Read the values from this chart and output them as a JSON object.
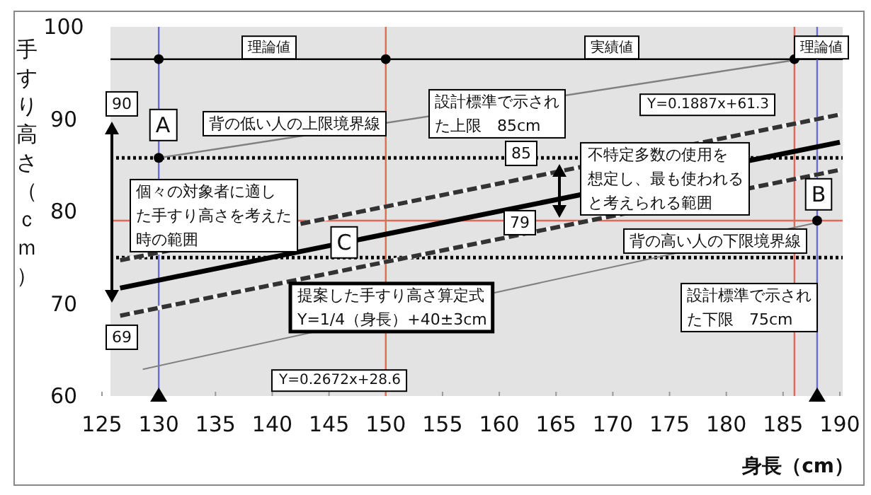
{
  "chart_data": {
    "type": "line",
    "xlabel": "身長（cm）",
    "ylabel": "手すり高さ（ｃｍ）",
    "xlim": [
      125,
      190
    ],
    "xticks": [
      125,
      130,
      135,
      140,
      145,
      150,
      155,
      160,
      165,
      170,
      175,
      180,
      185,
      190
    ],
    "ylim": [
      60,
      100
    ],
    "yticks": [
      60,
      70,
      80,
      90,
      100
    ],
    "grid": false,
    "series": [
      {
        "color": "#000000",
        "line_style": "solid",
        "marker": "none",
        "x": [
          126.6,
          190
        ],
        "values": [
          71.7,
          87.5
        ]
      },
      {
        "color": "#333333",
        "line_style": "dashed",
        "marker": "none",
        "x": [
          126.6,
          190
        ],
        "values": [
          74.7,
          90.5
        ]
      },
      {
        "color": "#333333",
        "line_style": "dashed",
        "marker": "none",
        "x": [
          126.6,
          190
        ],
        "values": [
          68.7,
          84.5
        ]
      },
      {
        "color": "#808080",
        "line_style": "solid",
        "marker": "none",
        "x": [
          130,
          186
        ],
        "values": [
          85.8,
          96.4
        ]
      },
      {
        "color": "#808080",
        "line_style": "solid",
        "marker": "none",
        "x": [
          128.6,
          188
        ],
        "values": [
          62.9,
          78.8
        ]
      },
      {
        "type": "scatter",
        "color": "#000000",
        "marker": "circle",
        "x": [
          130,
          150,
          186,
          130,
          188
        ],
        "values": [
          96.5,
          96.5,
          96.5,
          85.8,
          79
        ]
      },
      {
        "type": "scatter",
        "color": "#000000",
        "marker": "triangle",
        "x": [
          130,
          188
        ],
        "values": [
          60,
          60
        ]
      }
    ],
    "ref_lines": [
      {
        "axis": "y",
        "value": 96.5,
        "color": "#000000",
        "line_style": "solid"
      },
      {
        "axis": "y",
        "value": 85.8,
        "color": "#000000",
        "line_style": "dotted"
      },
      {
        "axis": "y",
        "value": 75,
        "color": "#000000",
        "line_style": "dotted"
      },
      {
        "axis": "y",
        "value": 79,
        "color": "#e06a5a",
        "line_style": "solid"
      },
      {
        "axis": "x",
        "value": 130,
        "color": "#6a6ad8",
        "line_style": "solid"
      },
      {
        "axis": "x",
        "value": 150,
        "color": "#e06a5a",
        "line_style": "solid"
      },
      {
        "axis": "x",
        "value": 186,
        "color": "#e06a5a",
        "line_style": "solid"
      },
      {
        "axis": "x",
        "value": 188,
        "color": "#6a6ad8",
        "line_style": "solid"
      }
    ],
    "annotations": [
      "理論値",
      "実績値",
      "理論値",
      "90",
      "A",
      "背の低い人の上限境界線",
      "設計標準で示された上限　85cm",
      "Y=0.1887x+61.3",
      "85",
      "個々の対象者に適した手すり高さを考えた時の範囲",
      "不特定多数の使用を想定し、最も使われると考えられる範囲",
      "B",
      "79",
      "背の高い人の下限境界線",
      "C",
      "提案した手すり高さ算定式Y=1/4（身長）+40±3cm",
      "設計標準で示された下限　75cm",
      "69",
      "Y=0.2672x+28.6"
    ]
  }
}
